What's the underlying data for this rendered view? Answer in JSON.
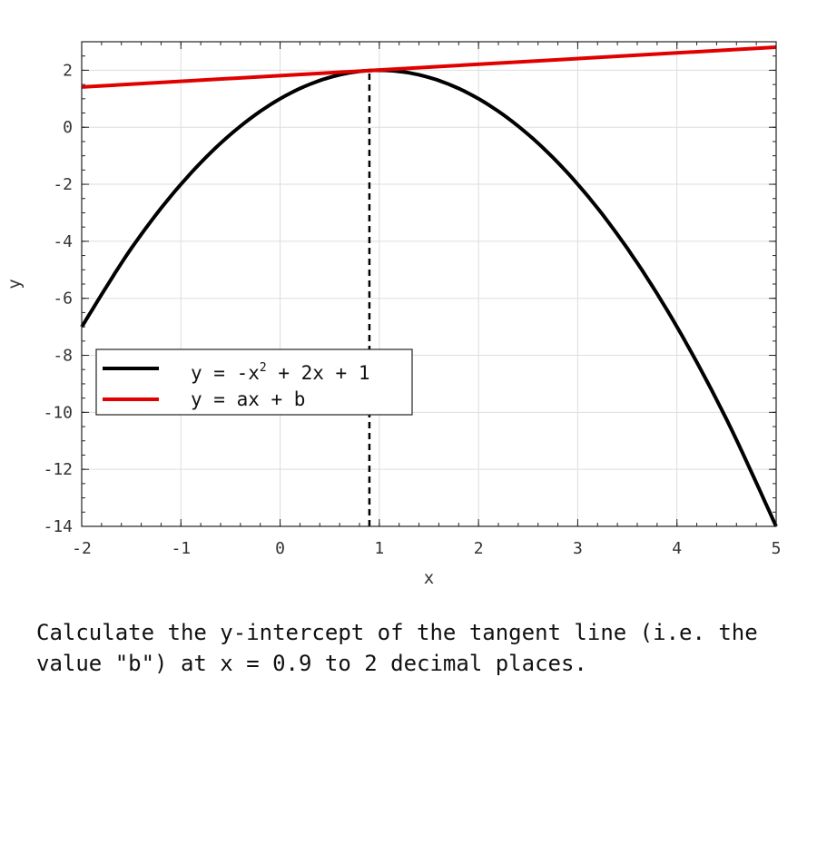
{
  "chart_data": {
    "type": "line",
    "xlabel": "x",
    "ylabel": "y",
    "xlim": [
      -2,
      5
    ],
    "ylim": [
      -14,
      3
    ],
    "xticks": [
      "-2",
      "-1",
      "0",
      "1",
      "2",
      "3",
      "4",
      "5"
    ],
    "yticks": [
      "-14",
      "-12",
      "-10",
      "-8",
      "-6",
      "-4",
      "-2",
      "0",
      "2"
    ],
    "grid": true,
    "legend_position": "middle-left",
    "series": [
      {
        "name_parts": [
          "y = -x",
          "2",
          " + 2x + 1"
        ],
        "color": "#000000",
        "x": [
          -2,
          -1.5,
          -1,
          -0.5,
          0,
          0.5,
          1,
          1.5,
          2,
          2.5,
          3,
          3.5,
          4,
          4.5,
          5
        ],
        "y": [
          -7,
          -4.25,
          -2,
          -0.25,
          1,
          1.75,
          2,
          1.75,
          1,
          -0.25,
          -2,
          -4.25,
          -7,
          -10.25,
          -14
        ]
      },
      {
        "name": "y = ax + b",
        "color": "#e00000",
        "x": [
          -2,
          5
        ],
        "y": [
          1.41,
          2.81
        ]
      }
    ],
    "marker_line": {
      "x": 0.9,
      "style": "dashed",
      "color": "#000000"
    }
  },
  "question": "Calculate the y-intercept of the tangent line (i.e. the value \"b\") at x = 0.9 to 2 decimal places."
}
